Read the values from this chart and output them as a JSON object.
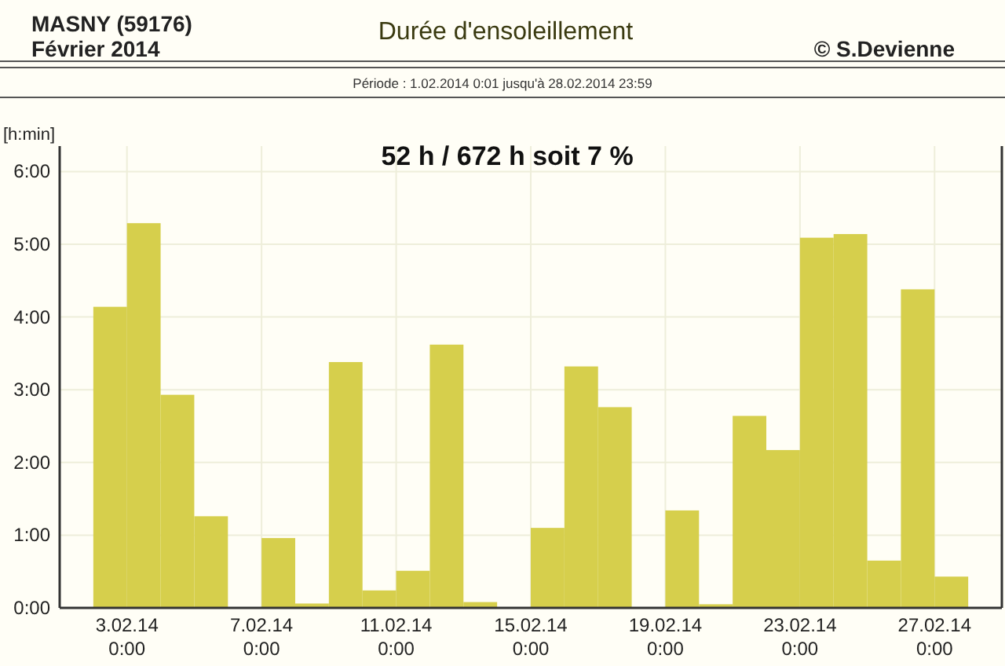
{
  "chart_data": {
    "type": "bar",
    "title": "Durée d'ensoleillement",
    "subtitle": "Période :  1.02.2014   0:01   jusqu'à  28.02.2014   23:59",
    "ylabel": "[h:min]",
    "annotations": [
      "MASNY (59176)",
      "Février  2014",
      "© S.Devienne",
      "52 h / 672 h  soit  7 %"
    ],
    "x": [
      "2014-02-01T12:00",
      "2014-02-02T12:00",
      "2014-02-03T12:00",
      "2014-02-04T12:00",
      "2014-02-05T12:00",
      "2014-02-06T12:00",
      "2014-02-07T12:00",
      "2014-02-08T12:00",
      "2014-02-09T12:00",
      "2014-02-10T12:00",
      "2014-02-11T12:00",
      "2014-02-12T12:00",
      "2014-02-13T12:00",
      "2014-02-14T12:00",
      "2014-02-15T12:00",
      "2014-02-16T12:00",
      "2014-02-17T12:00",
      "2014-02-18T12:00",
      "2014-02-19T12:00",
      "2014-02-20T12:00",
      "2014-02-21T12:00",
      "2014-02-22T12:00",
      "2014-02-23T12:00",
      "2014-02-24T12:00",
      "2014-02-25T12:00",
      "2014-02-26T12:00",
      "2014-02-27T12:00",
      "2014-02-28T12:00"
    ],
    "values": [
      0,
      4.14,
      5.29,
      2.93,
      1.26,
      0,
      0.96,
      0.06,
      3.38,
      0.24,
      0.51,
      3.62,
      0.08,
      0,
      1.1,
      3.32,
      2.76,
      0,
      1.34,
      0.05,
      2.64,
      2.17,
      5.09,
      5.14,
      0.65,
      4.38,
      0.43,
      0
    ],
    "color": "#d6cf4c",
    "xlim": [
      "2014-02-01",
      "2014-03-01"
    ],
    "xticks": [
      {
        "value": "2014-02-03",
        "label": "3.02.14 0:00"
      },
      {
        "value": "2014-02-07",
        "label": "7.02.14 0:00"
      },
      {
        "value": "2014-02-11",
        "label": "11.02.14 0:00"
      },
      {
        "value": "2014-02-15",
        "label": "15.02.14 0:00"
      },
      {
        "value": "2014-02-19",
        "label": "19.02.14 0:00"
      },
      {
        "value": "2014-02-23",
        "label": "23.02.14 0:00"
      },
      {
        "value": "2014-02-27",
        "label": "27.02.14 0:00"
      }
    ],
    "ylim": [
      0,
      6.35
    ],
    "yticks": [
      {
        "value": 0,
        "label": "0:00"
      },
      {
        "value": 1,
        "label": "1:00"
      },
      {
        "value": 2,
        "label": "2:00"
      },
      {
        "value": 3,
        "label": "3:00"
      },
      {
        "value": 4,
        "label": "4:00"
      },
      {
        "value": 5,
        "label": "5:00"
      },
      {
        "value": 6,
        "label": "6:00"
      }
    ],
    "grid": true
  }
}
